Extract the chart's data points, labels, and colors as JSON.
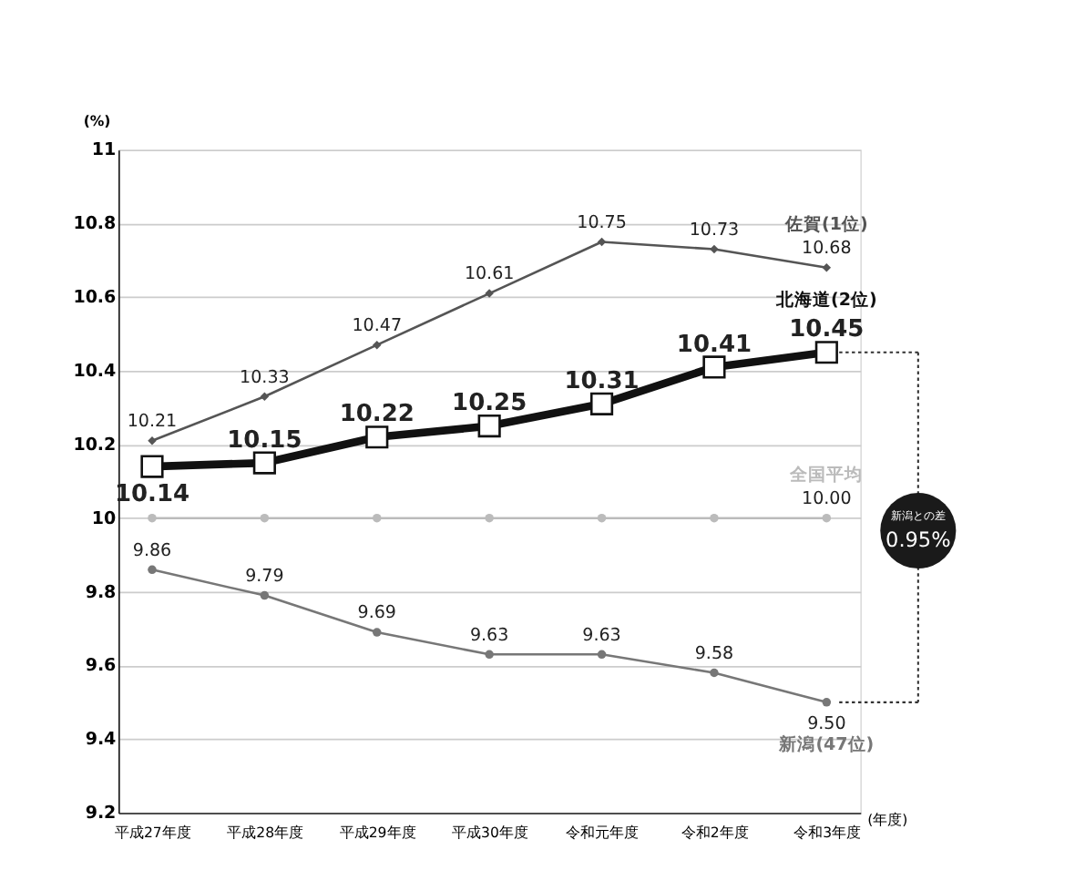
{
  "chart_data": {
    "type": "line",
    "categories": [
      "平成27年度",
      "平成28年度",
      "平成29年度",
      "平成30年度",
      "令和元年度",
      "令和2年度",
      "令和3年度"
    ],
    "xlabel": "(年度)",
    "ylabel": "(%)",
    "ylim": [
      9.2,
      11
    ],
    "yticks": [
      9.2,
      9.4,
      9.6,
      9.8,
      10,
      10.2,
      10.4,
      10.6,
      10.8,
      11
    ],
    "grid": "y",
    "legend": false,
    "line_style": "solid",
    "series": [
      {
        "name": "佐賀(1位)",
        "color": "#555555",
        "marker": "diamond",
        "values": [
          10.21,
          10.33,
          10.47,
          10.61,
          10.75,
          10.73,
          10.68
        ],
        "value_labels": [
          "10.21",
          "10.33",
          "10.47",
          "10.61",
          "10.75",
          "10.73",
          "10.68"
        ]
      },
      {
        "name": "北海道(2位)",
        "color": "#111111",
        "marker": "square",
        "values": [
          10.14,
          10.15,
          10.22,
          10.25,
          10.31,
          10.41,
          10.45
        ],
        "value_labels": [
          "10.14",
          "10.15",
          "10.22",
          "10.25",
          "10.31",
          "10.41",
          "10.45"
        ]
      },
      {
        "name": "全国平均",
        "color": "#bbbbbb",
        "marker": "circle",
        "values": [
          10.0,
          10.0,
          10.0,
          10.0,
          10.0,
          10.0,
          10.0
        ],
        "value_labels": [
          null,
          null,
          null,
          null,
          null,
          null,
          "10.00"
        ]
      },
      {
        "name": "新潟(47位)",
        "color": "#777777",
        "marker": "circle",
        "values": [
          9.86,
          9.79,
          9.69,
          9.63,
          9.63,
          9.58,
          9.5
        ],
        "value_labels": [
          "9.86",
          "9.79",
          "9.69",
          "9.63",
          "9.63",
          "9.58",
          "9.50"
        ]
      }
    ],
    "annotations": [
      "新潟との差",
      "0.95%"
    ]
  }
}
